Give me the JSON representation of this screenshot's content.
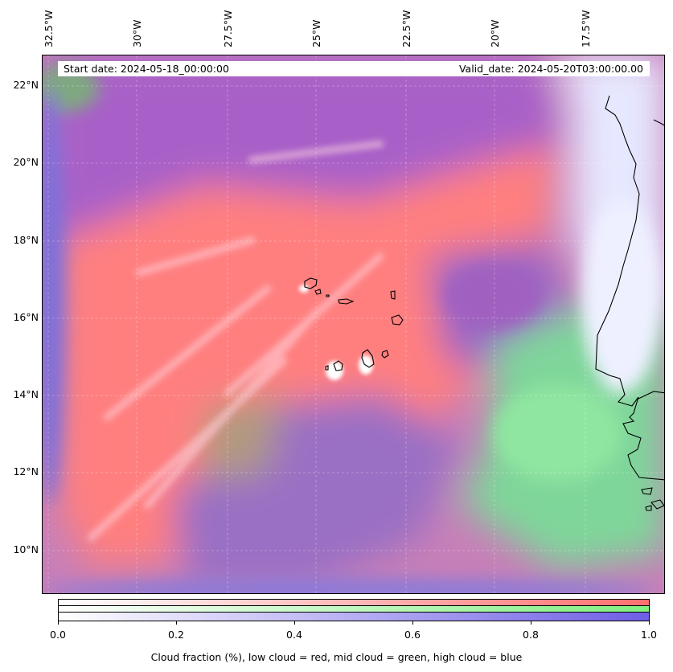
{
  "map": {
    "lon_labels": [
      "32.5°W",
      "30°W",
      "27.5°W",
      "25°W",
      "22.5°W",
      "20°W",
      "17.5°W"
    ],
    "lat_labels": [
      "22°N",
      "20°N",
      "18°N",
      "16°N",
      "14°N",
      "12°N",
      "10°N"
    ],
    "start_date": "Start date: 2024-05-18_00:00:00",
    "valid_date": "Valid_date: 2024-05-20T03:00:00.00",
    "colors": {
      "low_cloud": "#ff7f7f",
      "mid_cloud": "#7fe07f",
      "high_cloud": "#7f6fe0"
    }
  },
  "colorbar": {
    "ticks": [
      "0.0",
      "0.2",
      "0.4",
      "0.6",
      "0.8",
      "1.0"
    ],
    "label": "Cloud fraction (%), low cloud = red, mid cloud = green, high cloud = blue"
  }
}
